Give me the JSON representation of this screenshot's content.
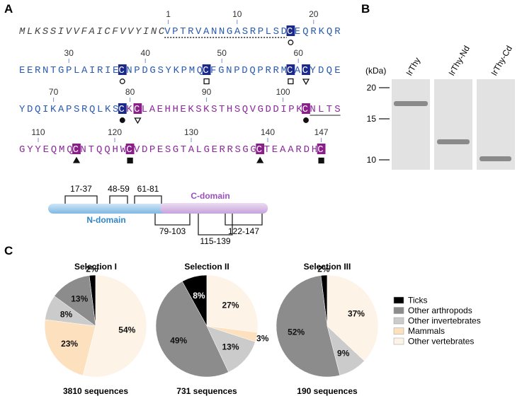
{
  "panel_a": {
    "label": "A",
    "sequence_lines": [
      [
        "MLKSSIVVFAICFVVYINC",
        "VPTRVANNGASRPLSD",
        "C",
        "EQRKQR"
      ],
      [
        "EERNTGPLAIRIE",
        "C",
        "NPDGSYKPMQ",
        "C",
        "FGNPDQPRRM",
        "C",
        "A",
        "C",
        "YDQE"
      ],
      [
        "YDQIKAPSRQLKS",
        "C",
        "K",
        "C",
        "LAEHHEKSKSTHSQVGDDIPK",
        "C",
        "NLTS"
      ],
      [
        "GYYEQMQ",
        "C",
        "NTQQHW",
        "C",
        "VDPESGTALGERRSGG",
        "C",
        "TEAARDH",
        "C"
      ]
    ],
    "residue_numbers": [
      [
        "1",
        "10",
        "20"
      ],
      [
        "30",
        "40",
        "50",
        "60"
      ],
      [
        "70",
        "80",
        "90",
        "100"
      ],
      [
        "110",
        "120",
        "130",
        "140",
        "147"
      ]
    ],
    "n_domain": "N-domain",
    "c_domain": "C-domain",
    "disulfide_bonds": [
      "17-37",
      "48-59",
      "61-81",
      "79-103",
      "115-139",
      "122-147"
    ]
  },
  "panel_b": {
    "label": "B",
    "unit": "(kDa)",
    "markers": [
      20,
      15,
      10
    ],
    "lanes": [
      "IrThy",
      "IrThy-Nd",
      "IrThy-Cd"
    ]
  },
  "panel_c_label": "C",
  "legend": {
    "names": [
      "Ticks",
      "Other arthropods",
      "Other invertebrates",
      "Mammals",
      "Other vertebrates"
    ],
    "colors": [
      "#000000",
      "#8c8c8c",
      "#cbcbcb",
      "#fde0bd",
      "#fdf3e6"
    ]
  },
  "chart_data": [
    {
      "type": "pie",
      "title": "Selection I",
      "values": [
        2,
        13,
        8,
        23,
        54
      ],
      "value_labels": [
        "2%",
        "13%",
        "8%",
        "23%",
        "54%"
      ],
      "footer": "3810 sequences"
    },
    {
      "type": "pie",
      "title": "Selection II",
      "values": [
        8,
        49,
        13,
        3,
        27
      ],
      "value_labels": [
        "8%",
        "49%",
        "13%",
        "3%",
        "27%"
      ],
      "footer": "731 sequences"
    },
    {
      "type": "pie",
      "title": "Selection III",
      "values": [
        2,
        52,
        9,
        0,
        37
      ],
      "value_labels": [
        "2%",
        "52%",
        "9%",
        null,
        "37%"
      ],
      "footer": "190 sequences"
    }
  ]
}
